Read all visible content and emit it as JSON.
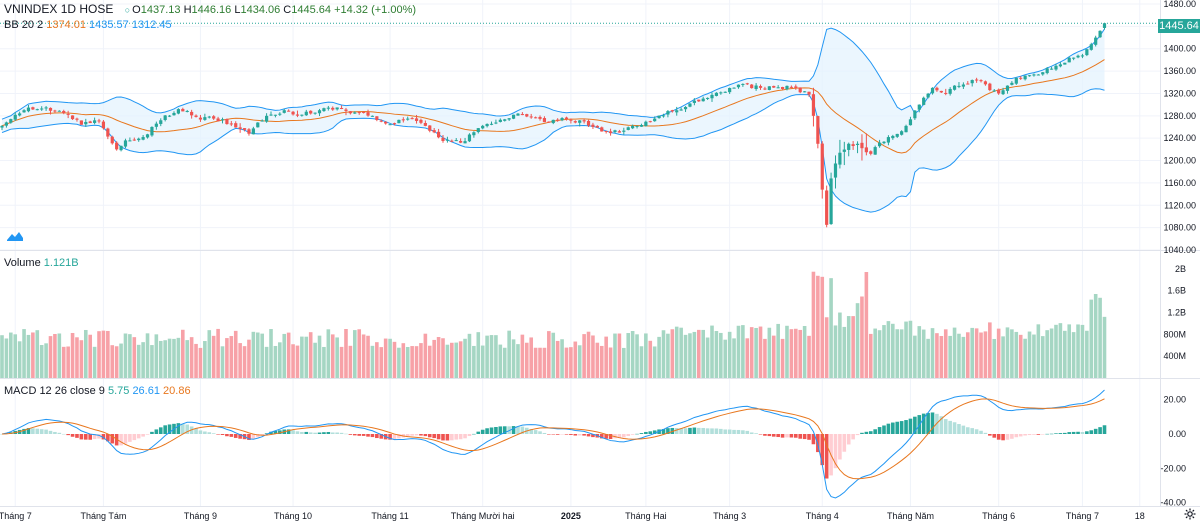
{
  "header": {
    "symbol": "VNINDEX",
    "interval": "1D",
    "exchange": "HOSE",
    "ohlc": {
      "open_label": "O",
      "open": "1437.13",
      "high_label": "H",
      "high": "1446.16",
      "low_label": "L",
      "low": "1434.06",
      "close_label": "C",
      "close": "1445.64",
      "change": "+14.32 (+1.00%)"
    }
  },
  "bb_legend": {
    "label": "BB 20 2",
    "basis": "1374.01",
    "upper": "1435.57",
    "lower": "1312.45"
  },
  "volume_legend": {
    "label": "Volume",
    "value": "1.121B"
  },
  "macd_legend": {
    "label": "MACD 12 26 close 9",
    "hist": "5.75",
    "macd": "26.61",
    "signal": "20.86"
  },
  "last_price_tag": "1445.64",
  "colors": {
    "up": "#26a69a",
    "down": "#ef5350",
    "vol_up": "#a5d6c3",
    "vol_down": "#f7a1a7",
    "bb": "#2196f3",
    "bb_fill": "#e3f2fd",
    "basis": "#e8771e",
    "macd": "#2196f3",
    "signal": "#e8771e",
    "hist_up_strong": "#26a69a",
    "hist_up_weak": "#b2dfdb",
    "hist_dn_strong": "#ef5350",
    "hist_dn_weak": "#ffcdd2"
  },
  "chart_data": {
    "type": "candlestick",
    "title": "VNINDEX 1D HOSE",
    "price_axis": {
      "ylim": [
        1040,
        1480
      ],
      "ticks": [
        "1480.00",
        "1440.00",
        "1400.00",
        "1360.00",
        "1320.00",
        "1280.00",
        "1240.00",
        "1200.00",
        "1160.00",
        "1120.00",
        "1080.00",
        "1040.00"
      ]
    },
    "volume_axis": {
      "ylim": [
        0,
        2200
      ],
      "ticks": [
        "2B",
        "1.6B",
        "1.2B",
        "800M",
        "400M"
      ],
      "tick_values": [
        2000,
        1600,
        1200,
        800,
        400
      ]
    },
    "macd_axis": {
      "ylim": [
        -42,
        28
      ],
      "ticks": [
        "20.00",
        "0.00",
        "-20.00",
        "-40.00"
      ],
      "tick_values": [
        20,
        0,
        -20,
        -40
      ]
    },
    "x_labels": [
      {
        "label": "Tháng 7",
        "idx": 3
      },
      {
        "label": "Tháng Tám",
        "idx": 23
      },
      {
        "label": "Tháng 9",
        "idx": 45
      },
      {
        "label": "Tháng 10",
        "idx": 66
      },
      {
        "label": "Tháng 11",
        "idx": 88
      },
      {
        "label": "Tháng Mười hai",
        "idx": 109
      },
      {
        "label": "2025",
        "idx": 129
      },
      {
        "label": "Tháng Hai",
        "idx": 146
      },
      {
        "label": "Tháng 3",
        "idx": 165
      },
      {
        "label": "Tháng 4",
        "idx": 186
      },
      {
        "label": "Tháng Năm",
        "idx": 206
      },
      {
        "label": "Tháng 6",
        "idx": 226
      },
      {
        "label": "Tháng 7",
        "idx": 245
      },
      {
        "label": "18",
        "idx": 258
      }
    ],
    "anchors": [
      [
        0,
        1262
      ],
      [
        5,
        1290
      ],
      [
        10,
        1295
      ],
      [
        14,
        1285
      ],
      [
        18,
        1264
      ],
      [
        22,
        1270
      ],
      [
        26,
        1220
      ],
      [
        28,
        1236
      ],
      [
        32,
        1242
      ],
      [
        36,
        1272
      ],
      [
        40,
        1292
      ],
      [
        44,
        1278
      ],
      [
        48,
        1275
      ],
      [
        52,
        1266
      ],
      [
        56,
        1248
      ],
      [
        60,
        1280
      ],
      [
        64,
        1290
      ],
      [
        68,
        1282
      ],
      [
        72,
        1290
      ],
      [
        76,
        1295
      ],
      [
        80,
        1286
      ],
      [
        84,
        1280
      ],
      [
        88,
        1265
      ],
      [
        92,
        1275
      ],
      [
        96,
        1262
      ],
      [
        100,
        1235
      ],
      [
        104,
        1232
      ],
      [
        108,
        1258
      ],
      [
        112,
        1268
      ],
      [
        116,
        1282
      ],
      [
        120,
        1278
      ],
      [
        124,
        1268
      ],
      [
        128,
        1274
      ],
      [
        132,
        1270
      ],
      [
        136,
        1252
      ],
      [
        140,
        1250
      ],
      [
        144,
        1262
      ],
      [
        148,
        1275
      ],
      [
        152,
        1288
      ],
      [
        156,
        1302
      ],
      [
        160,
        1312
      ],
      [
        164,
        1323
      ],
      [
        168,
        1337
      ],
      [
        172,
        1330
      ],
      [
        176,
        1331
      ],
      [
        180,
        1330
      ],
      [
        183,
        1318
      ],
      [
        184,
        1280
      ],
      [
        185,
        1230
      ],
      [
        186,
        1148
      ],
      [
        187,
        1085
      ],
      [
        188,
        1168
      ],
      [
        190,
        1214
      ],
      [
        192,
        1230
      ],
      [
        194,
        1230
      ],
      [
        197,
        1212
      ],
      [
        199,
        1232
      ],
      [
        202,
        1244
      ],
      [
        205,
        1262
      ],
      [
        208,
        1300
      ],
      [
        211,
        1330
      ],
      [
        214,
        1320
      ],
      [
        216,
        1334
      ],
      [
        218,
        1336
      ],
      [
        220,
        1344
      ],
      [
        222,
        1342
      ],
      [
        224,
        1326
      ],
      [
        226,
        1320
      ],
      [
        228,
        1334
      ],
      [
        230,
        1348
      ],
      [
        232,
        1352
      ],
      [
        236,
        1358
      ],
      [
        240,
        1372
      ],
      [
        243,
        1384
      ],
      [
        245,
        1388
      ],
      [
        247,
        1408
      ],
      [
        249,
        1432
      ],
      [
        250,
        1446
      ]
    ]
  }
}
